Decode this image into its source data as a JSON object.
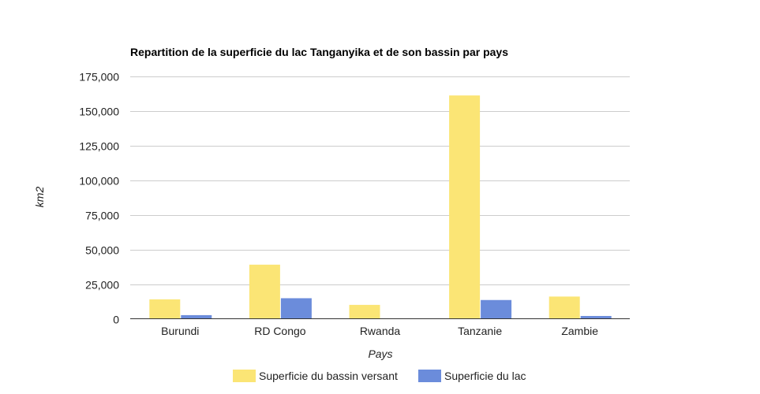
{
  "chart_data": {
    "type": "bar",
    "title": "Repartition de la superficie du lac Tanganyika et de son bassin par pays",
    "xlabel": "Pays",
    "ylabel": "km2",
    "categories": [
      "Burundi",
      "RD Congo",
      "Rwanda",
      "Tanzanie",
      "Zambie"
    ],
    "series": [
      {
        "name": "Superficie du bassin versant",
        "color": "#fbe575",
        "values": [
          14000,
          39000,
          10000,
          161000,
          16000
        ]
      },
      {
        "name": "Superficie du lac",
        "color": "#6b8cdb",
        "values": [
          2600,
          14800,
          0,
          13500,
          2000
        ]
      }
    ],
    "ylim": [
      0,
      175000
    ],
    "yticks": [
      0,
      25000,
      50000,
      75000,
      100000,
      125000,
      150000,
      175000
    ],
    "ytick_labels": [
      "0",
      "25,000",
      "50,000",
      "75,000",
      "100,000",
      "125,000",
      "150,000",
      "175,000"
    ],
    "grid": true,
    "legend": "bottom"
  }
}
